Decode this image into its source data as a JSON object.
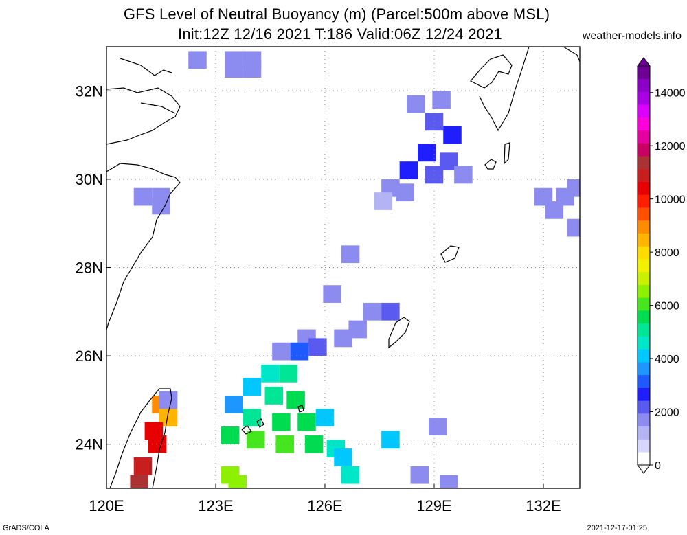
{
  "header": {
    "title_line1": "GFS Level of Neutral Buoyancy (m) (Parcel:500m above MSL)",
    "title_line2": "Init:12Z 12/16 2021 T:186 Valid:06Z 12/24 2021",
    "site": "weather-models.info"
  },
  "footer": {
    "left": "GrADS/COLA",
    "right": "2021-12-17-01:25"
  },
  "chart_data": {
    "type": "heatmap",
    "title": "GFS Level of Neutral Buoyancy (m) (Parcel:500m above MSL)",
    "subtitle": "Init:12Z 12/16 2021 T:186 Valid:06Z 12/24 2021",
    "xlim": [
      120,
      133
    ],
    "ylim": [
      23,
      33
    ],
    "grid": true,
    "x_ticks": [
      120,
      123,
      126,
      129,
      132
    ],
    "x_tick_labels": [
      "120E",
      "123E",
      "126E",
      "129E",
      "132E"
    ],
    "y_ticks": [
      24,
      26,
      28,
      30,
      32
    ],
    "y_tick_labels": [
      "24N",
      "26N",
      "28N",
      "30N",
      "32N"
    ],
    "colorbar": {
      "range": [
        0,
        15000
      ],
      "ticks": [
        0,
        2000,
        4000,
        6000,
        8000,
        10000,
        12000,
        14000
      ],
      "tick_labels": [
        "0",
        "2000",
        "4000",
        "6000",
        "8000",
        "10000",
        "12000",
        "14000"
      ],
      "colors": [
        "#ffffff",
        "#d6d6ff",
        "#b4b4f4",
        "#8c8cf0",
        "#5a5af0",
        "#1e1eff",
        "#1e5aff",
        "#1e96ff",
        "#00c8ff",
        "#00e6c8",
        "#00e696",
        "#00dc50",
        "#46e61e",
        "#8cf000",
        "#c8f000",
        "#f0f000",
        "#ffdc00",
        "#ffb400",
        "#ff8c00",
        "#ff5000",
        "#ff1e00",
        "#e60000",
        "#c81e1e",
        "#aa3232",
        "#c80064",
        "#e600a0",
        "#ff00dc",
        "#dc00ff",
        "#aa00e6",
        "#8c00c8",
        "#6e0096"
      ]
    },
    "cells": [
      [
        122.5,
        32.7,
        1500
      ],
      [
        123.5,
        32.7,
        1500
      ],
      [
        124.0,
        32.7,
        1500
      ],
      [
        124.0,
        32.5,
        1500
      ],
      [
        123.5,
        32.5,
        1500
      ],
      [
        121.0,
        29.6,
        1500
      ],
      [
        121.5,
        29.6,
        1500
      ],
      [
        121.5,
        29.4,
        1500
      ],
      [
        128.5,
        31.7,
        1500
      ],
      [
        129.2,
        31.8,
        1800
      ],
      [
        129.0,
        31.3,
        2200
      ],
      [
        129.5,
        31.0,
        2500
      ],
      [
        128.8,
        30.6,
        2600
      ],
      [
        129.4,
        30.4,
        2400
      ],
      [
        128.3,
        30.2,
        2500
      ],
      [
        129.0,
        30.1,
        2200
      ],
      [
        127.8,
        29.8,
        1800
      ],
      [
        128.2,
        29.7,
        1900
      ],
      [
        127.6,
        29.5,
        1400
      ],
      [
        129.8,
        30.1,
        1700
      ],
      [
        132.0,
        29.6,
        1700
      ],
      [
        132.6,
        29.6,
        1600
      ],
      [
        132.3,
        29.3,
        1600
      ],
      [
        132.9,
        29.8,
        1500
      ],
      [
        132.9,
        28.9,
        1500
      ],
      [
        126.7,
        28.3,
        1500
      ],
      [
        126.2,
        27.4,
        1700
      ],
      [
        127.3,
        27.0,
        1800
      ],
      [
        127.8,
        27.0,
        2000
      ],
      [
        126.9,
        26.6,
        1600
      ],
      [
        126.5,
        26.4,
        1700
      ],
      [
        125.5,
        26.4,
        1500
      ],
      [
        125.8,
        26.2,
        2400
      ],
      [
        124.8,
        26.1,
        1800
      ],
      [
        125.3,
        26.1,
        3200
      ],
      [
        124.5,
        25.6,
        4600
      ],
      [
        125.0,
        25.6,
        5000
      ],
      [
        124.0,
        25.3,
        4200
      ],
      [
        124.6,
        25.1,
        5200
      ],
      [
        125.2,
        25.0,
        5400
      ],
      [
        123.5,
        24.9,
        3600
      ],
      [
        124.0,
        24.6,
        5000
      ],
      [
        124.8,
        24.5,
        5600
      ],
      [
        125.5,
        24.5,
        5800
      ],
      [
        126.0,
        24.6,
        4200
      ],
      [
        123.4,
        24.2,
        5600
      ],
      [
        124.1,
        24.1,
        6000
      ],
      [
        124.9,
        24.0,
        6200
      ],
      [
        125.7,
        24.0,
        5600
      ],
      [
        126.3,
        23.9,
        4400
      ],
      [
        126.5,
        23.7,
        4000
      ],
      [
        123.4,
        23.3,
        6400
      ],
      [
        123.6,
        23.1,
        6600
      ],
      [
        126.7,
        23.3,
        4600
      ],
      [
        121.5,
        24.9,
        9000
      ],
      [
        121.7,
        24.6,
        8400
      ],
      [
        121.3,
        24.3,
        10600
      ],
      [
        121.4,
        24.0,
        10400
      ],
      [
        121.0,
        23.5,
        11000
      ],
      [
        120.9,
        23.1,
        11600
      ],
      [
        121.7,
        25.0,
        1500
      ],
      [
        127.8,
        24.1,
        4000
      ],
      [
        129.1,
        24.4,
        1500
      ],
      [
        128.6,
        23.3,
        1500
      ],
      [
        129.4,
        23.1,
        1500
      ]
    ]
  }
}
